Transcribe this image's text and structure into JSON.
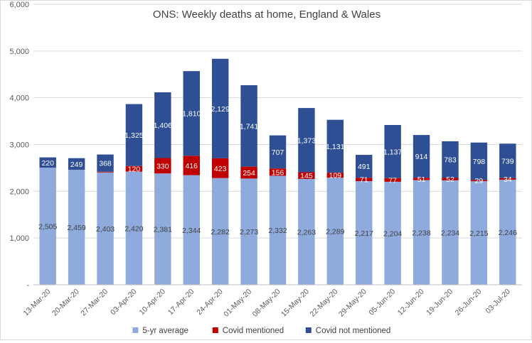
{
  "chart_data": {
    "type": "bar",
    "stacked": true,
    "title": "ONS: Weekly deaths at home, England & Wales",
    "xlabel": "",
    "ylabel": "",
    "ylim": [
      0,
      6000
    ],
    "yticks": [
      "-",
      "1,000",
      "2,000",
      "3,000",
      "4,000",
      "5,000",
      "6,000"
    ],
    "grid": true,
    "legend_position": "bottom",
    "categories": [
      "13-Mar-20",
      "20-Mar-20",
      "27-Mar-20",
      "03-Apr-20",
      "10-Apr-20",
      "17-Apr-20",
      "24-Apr-20",
      "01-May-20",
      "08-May-20",
      "15-May-20",
      "22-May-20",
      "29-May-20",
      "05-Jun-20",
      "12-Jun-20",
      "19-Jun-20",
      "26-Jun-20",
      "03-Jul-20"
    ],
    "series": [
      {
        "name": "5-yr average",
        "color": "#8faadc",
        "label_color": "#404040",
        "values": [
          2505,
          2459,
          2403,
          2420,
          2381,
          2344,
          2282,
          2273,
          2332,
          2263,
          2289,
          2217,
          2204,
          2238,
          2234,
          2215,
          2246
        ],
        "labels": [
          "2,505",
          "2,459",
          "2,403",
          "2,420",
          "2,381",
          "2,344",
          "2,282",
          "2,273",
          "2,332",
          "2,263",
          "2,289",
          "2,217",
          "2,204",
          "2,238",
          "2,234",
          "2,215",
          "2,246"
        ]
      },
      {
        "name": "Covid mentioned",
        "color": "#c00000",
        "label_color": "#ffffff",
        "values": [
          0,
          0,
          15,
          120,
          330,
          416,
          423,
          254,
          156,
          145,
          109,
          71,
          77,
          51,
          52,
          29,
          34
        ],
        "labels": [
          "",
          "",
          "",
          "120",
          "330",
          "416",
          "423",
          "254",
          "156",
          "145",
          "109",
          "71",
          "77",
          "51",
          "52",
          "29",
          "34"
        ]
      },
      {
        "name": "Covid not mentioned",
        "color": "#2f4f94",
        "label_color": "#ffffff",
        "values": [
          220,
          249,
          368,
          1325,
          1406,
          1810,
          2129,
          1741,
          707,
          1373,
          1131,
          491,
          1137,
          914,
          783,
          798,
          739
        ],
        "labels": [
          "220",
          "249",
          "368",
          "1,325",
          "1,406",
          "1,810",
          "2,129",
          "1,741",
          "707",
          "1,373",
          "1,131",
          "491",
          "1,137",
          "914",
          "783",
          "798",
          "739"
        ]
      }
    ]
  }
}
